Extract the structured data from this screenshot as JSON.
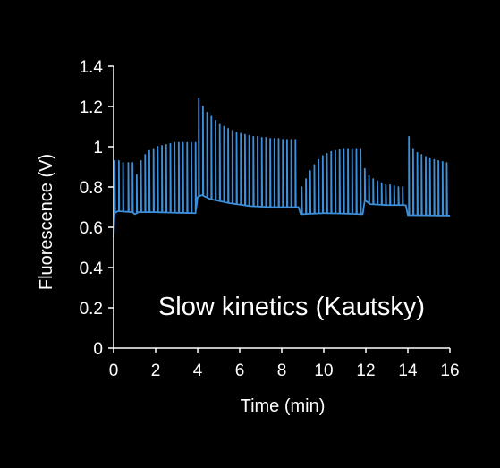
{
  "chart_data": {
    "type": "line",
    "title": "",
    "xlabel": "Time (min)",
    "ylabel": "Fluorescence (V)",
    "xlim": [
      0,
      16
    ],
    "ylim": [
      0,
      1.4
    ],
    "x_ticks": [
      "0",
      "2",
      "4",
      "6",
      "8",
      "10",
      "12",
      "14",
      "16"
    ],
    "y_ticks": [
      "0",
      "0.2",
      "0.4",
      "0.6",
      "0.8",
      "1",
      "1.2",
      "1.4"
    ],
    "annotation": "Slow kinetics (Kautsky)",
    "grid": false,
    "legend": "none",
    "series": [
      {
        "color": "#3d8fd9",
        "baseline": [
          [
            0,
            0.55
          ],
          [
            0.05,
            0.67
          ],
          [
            0.2,
            0.68
          ],
          [
            0.9,
            0.675
          ],
          [
            1.0,
            0.665
          ],
          [
            1.2,
            0.675
          ],
          [
            2.0,
            0.675
          ],
          [
            3.0,
            0.672
          ],
          [
            3.9,
            0.67
          ],
          [
            4.0,
            0.75
          ],
          [
            4.2,
            0.76
          ],
          [
            4.6,
            0.74
          ],
          [
            5.5,
            0.72
          ],
          [
            6.5,
            0.705
          ],
          [
            7.5,
            0.7
          ],
          [
            8.8,
            0.7
          ],
          [
            8.9,
            0.665
          ],
          [
            10.0,
            0.67
          ],
          [
            11.0,
            0.668
          ],
          [
            11.85,
            0.665
          ],
          [
            11.95,
            0.735
          ],
          [
            12.2,
            0.715
          ],
          [
            13.0,
            0.71
          ],
          [
            13.9,
            0.71
          ],
          [
            14.0,
            0.66
          ],
          [
            14.3,
            0.66
          ],
          [
            16,
            0.658
          ]
        ],
        "peaks": [
          [
            0.05,
            0.93
          ],
          [
            0.25,
            0.93
          ],
          [
            0.45,
            0.92
          ],
          [
            0.7,
            0.92
          ],
          [
            0.9,
            0.92
          ],
          [
            1.1,
            0.86
          ],
          [
            1.3,
            0.93
          ],
          [
            1.5,
            0.96
          ],
          [
            1.7,
            0.98
          ],
          [
            1.9,
            0.99
          ],
          [
            2.1,
            1.0
          ],
          [
            2.3,
            1.005
          ],
          [
            2.5,
            1.01
          ],
          [
            2.7,
            1.015
          ],
          [
            2.9,
            1.02
          ],
          [
            3.1,
            1.02
          ],
          [
            3.3,
            1.02
          ],
          [
            3.5,
            1.02
          ],
          [
            3.7,
            1.02
          ],
          [
            3.9,
            1.02
          ],
          [
            4.05,
            1.24
          ],
          [
            4.25,
            1.2
          ],
          [
            4.45,
            1.17
          ],
          [
            4.65,
            1.15
          ],
          [
            4.85,
            1.13
          ],
          [
            5.05,
            1.11
          ],
          [
            5.25,
            1.1
          ],
          [
            5.45,
            1.09
          ],
          [
            5.65,
            1.08
          ],
          [
            5.85,
            1.07
          ],
          [
            6.05,
            1.065
          ],
          [
            6.25,
            1.06
          ],
          [
            6.45,
            1.055
          ],
          [
            6.65,
            1.05
          ],
          [
            6.85,
            1.05
          ],
          [
            7.05,
            1.045
          ],
          [
            7.25,
            1.045
          ],
          [
            7.45,
            1.04
          ],
          [
            7.65,
            1.04
          ],
          [
            7.85,
            1.04
          ],
          [
            8.05,
            1.035
          ],
          [
            8.25,
            1.035
          ],
          [
            8.45,
            1.035
          ],
          [
            8.65,
            1.035
          ],
          [
            8.95,
            0.8
          ],
          [
            9.15,
            0.84
          ],
          [
            9.35,
            0.88
          ],
          [
            9.55,
            0.91
          ],
          [
            9.75,
            0.935
          ],
          [
            9.95,
            0.955
          ],
          [
            10.15,
            0.965
          ],
          [
            10.35,
            0.975
          ],
          [
            10.55,
            0.98
          ],
          [
            10.75,
            0.985
          ],
          [
            10.95,
            0.99
          ],
          [
            11.15,
            0.99
          ],
          [
            11.35,
            0.99
          ],
          [
            11.55,
            0.99
          ],
          [
            11.75,
            0.99
          ],
          [
            11.95,
            0.89
          ],
          [
            12.15,
            0.855
          ],
          [
            12.35,
            0.84
          ],
          [
            12.55,
            0.83
          ],
          [
            12.75,
            0.82
          ],
          [
            12.95,
            0.81
          ],
          [
            13.15,
            0.81
          ],
          [
            13.35,
            0.805
          ],
          [
            13.55,
            0.8
          ],
          [
            13.75,
            0.8
          ],
          [
            14.05,
            1.05
          ],
          [
            14.25,
            0.99
          ],
          [
            14.45,
            0.97
          ],
          [
            14.65,
            0.96
          ],
          [
            14.85,
            0.95
          ],
          [
            15.05,
            0.94
          ],
          [
            15.25,
            0.935
          ],
          [
            15.45,
            0.93
          ],
          [
            15.65,
            0.925
          ],
          [
            15.85,
            0.92
          ]
        ]
      }
    ]
  }
}
